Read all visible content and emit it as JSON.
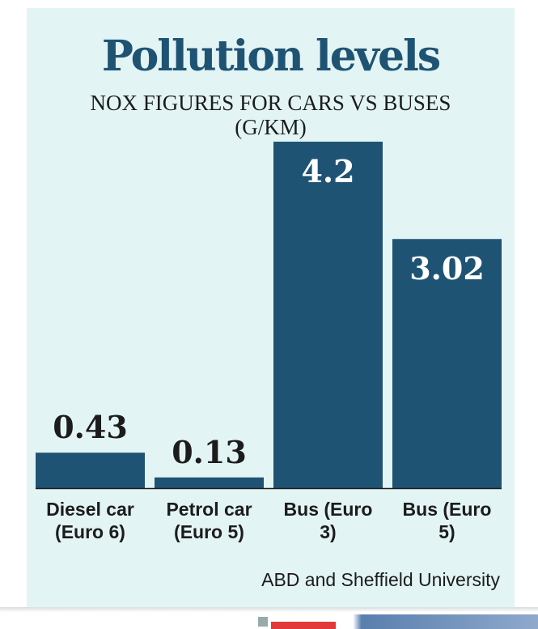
{
  "chart_data": {
    "type": "bar",
    "title": "Pollution levels",
    "subtitle": [
      "NOX FIGURES FOR CARS VS BUSES",
      "(G/KM)"
    ],
    "categories": [
      [
        "Diesel car",
        "(Euro 6)"
      ],
      [
        "Petrol car",
        "(Euro 5)"
      ],
      [
        "Bus (Euro",
        "3)"
      ],
      [
        "Bus (Euro",
        "5)"
      ]
    ],
    "values": [
      0.43,
      0.13,
      4.2,
      3.02
    ],
    "value_labels": [
      "0.43",
      "0.13",
      "4.2",
      "3.02"
    ],
    "ylim": [
      0,
      4.2
    ],
    "grid": false,
    "xlabel": "",
    "ylabel": "",
    "source": "ABD and Sheffield University",
    "colors": {
      "bar": "#1f5373",
      "background": "#e3f4f4"
    }
  }
}
